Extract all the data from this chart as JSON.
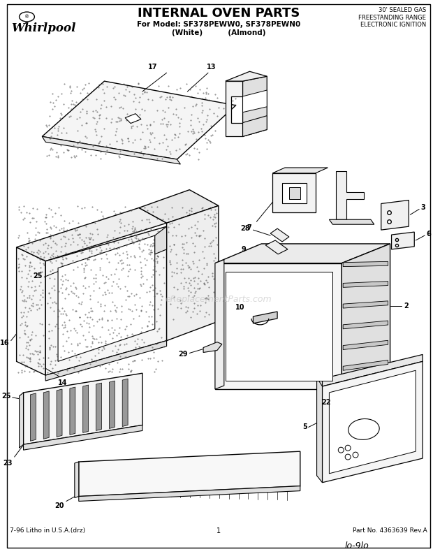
{
  "title": "INTERNAL OVEN PARTS",
  "subtitle": "For Model: SF378PEWW0, SF378PEWN0",
  "subtitle2": "(White)          (Almond)",
  "brand": "Whirlpool",
  "top_right": "30' SEALED GAS\nFREESTANDING RANGE\nELECTRONIC IGNITION",
  "bottom_left": "7-96 Litho in U.S.A.(drz)",
  "bottom_center": "1",
  "bottom_right": "Part No. 4363639 Rev.A",
  "watermark": "eReplacementParts.com",
  "background": "#ffffff"
}
